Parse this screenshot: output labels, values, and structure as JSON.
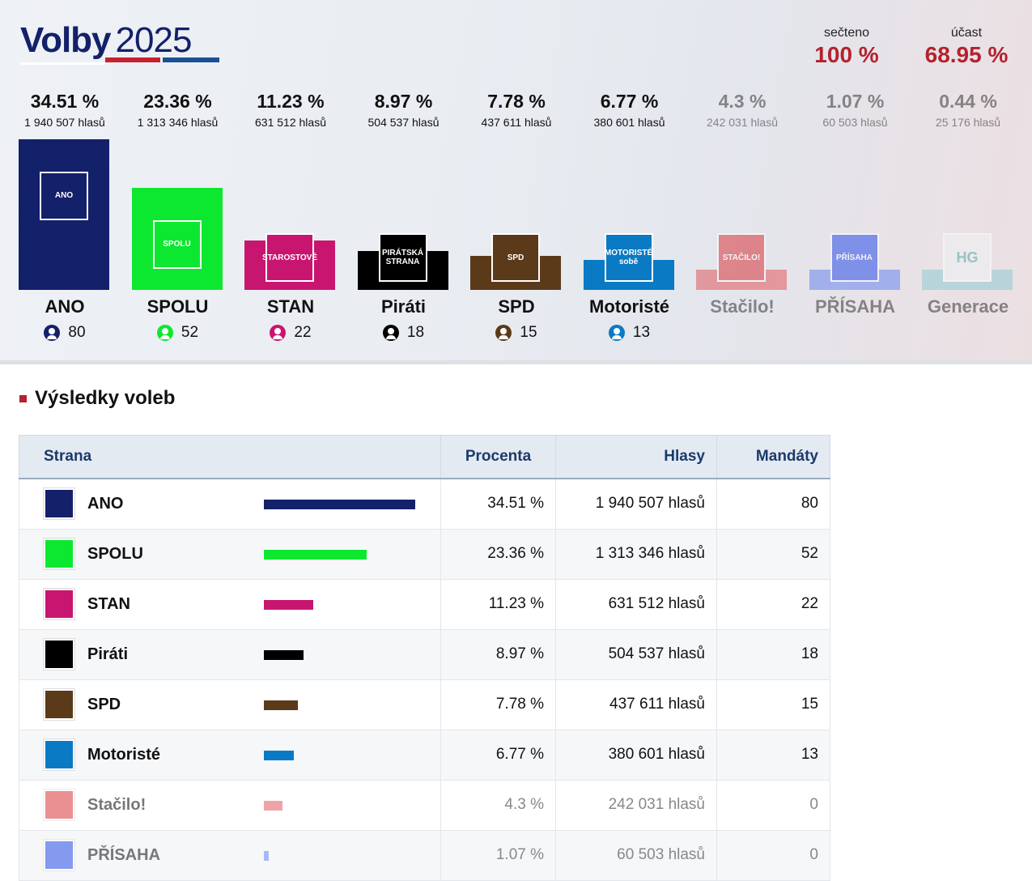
{
  "header": {
    "logo_bold": "Volby",
    "logo_year": "2025",
    "counted_label": "sečteno",
    "counted_value": "100 %",
    "turnout_label": "účast",
    "turnout_value": "68.95 %"
  },
  "section_title": "Výsledky voleb",
  "table_headers": {
    "party": "Strana",
    "percent": "Procenta",
    "votes": "Hlasy",
    "seats": "Mandáty"
  },
  "parties": [
    {
      "name": "ANO",
      "logo_text": "ANO",
      "percent": 34.51,
      "percent_label": "34.51 %",
      "votes": "1 940 507 hlasů",
      "seats": "80",
      "color": "#13206a",
      "logo_color": "#13206a",
      "elected": true
    },
    {
      "name": "SPOLU",
      "logo_text": "SPOLU",
      "percent": 23.36,
      "percent_label": "23.36 %",
      "votes": "1 313 346 hlasů",
      "seats": "52",
      "color": "#0ce82f",
      "logo_color": "#0ce82f",
      "elected": true
    },
    {
      "name": "STAN",
      "logo_text": "STAROSTOVÉ",
      "percent": 11.23,
      "percent_label": "11.23 %",
      "votes": "631 512 hlasů",
      "seats": "22",
      "color": "#c81670",
      "logo_color": "#c81670",
      "elected": true
    },
    {
      "name": "Piráti",
      "logo_text": "PIRÁTSKÁ STRANA",
      "percent": 8.97,
      "percent_label": "8.97 %",
      "votes": "504 537 hlasů",
      "seats": "18",
      "color": "#000000",
      "logo_color": "#000000",
      "elected": true
    },
    {
      "name": "SPD",
      "logo_text": "SPD",
      "percent": 7.78,
      "percent_label": "7.78 %",
      "votes": "437 611 hlasů",
      "seats": "15",
      "color": "#5b3a1a",
      "logo_color": "#5b3a1a",
      "elected": true
    },
    {
      "name": "Motoristé",
      "logo_text": "MOTORISTÉ sobě",
      "percent": 6.77,
      "percent_label": "6.77 %",
      "votes": "380 601 hlasů",
      "seats": "13",
      "color": "#0a7ac4",
      "logo_color": "#0a7ac4",
      "elected": true
    },
    {
      "name": "Stačilo!",
      "logo_text": "STAČILO!",
      "percent": 4.3,
      "percent_label": "4.3 %",
      "votes": "242 031 hlasů",
      "seats": "0",
      "color": "#e05a5e",
      "logo_color": "#d9363c",
      "elected": false
    },
    {
      "name": "PŘÍSAHA",
      "logo_text": "PŘÍSAHA",
      "percent": 1.07,
      "percent_label": "1.07 %",
      "votes": "60 503 hlasů",
      "seats": "0",
      "color": "#6a86f2",
      "logo_color": "#2a4ee8",
      "elected": false
    },
    {
      "name": "Generace",
      "logo_text": "HG",
      "percent": 0.44,
      "percent_label": "0.44 %",
      "votes": "25 176 hlasů",
      "seats": "",
      "color": "#8fcbd2",
      "logo_color": "#eef3f3",
      "elected": false
    }
  ]
}
